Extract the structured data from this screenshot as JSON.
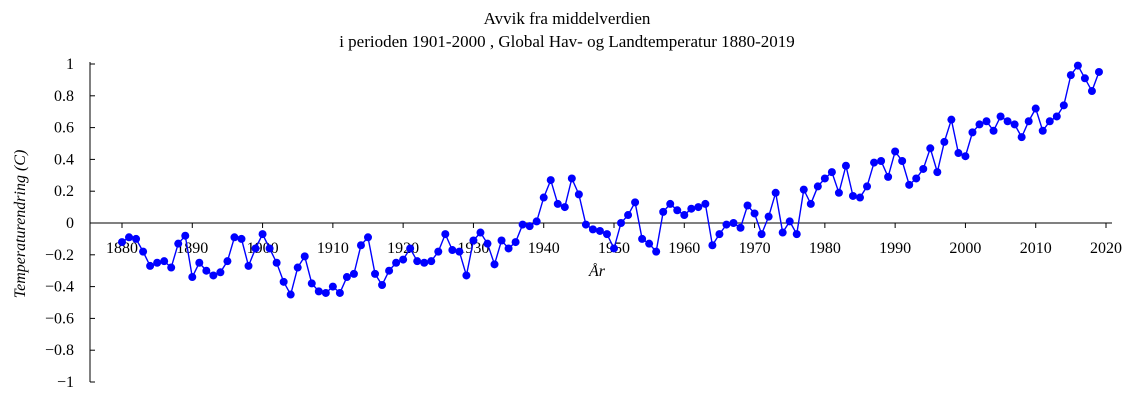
{
  "colors": {
    "series": "#0000ff",
    "axis": "#000000",
    "background": "#ffffff"
  },
  "chart_data": {
    "type": "line",
    "title_lines": [
      "Avvik fra middelverdien",
      "i perioden 1901-2000 , Global Hav- og Landtemperatur 1880-2019"
    ],
    "xlabel": "År",
    "ylabel": "Temperaturendring (C)",
    "xlim": [
      1880,
      2020
    ],
    "ylim": [
      -1,
      1
    ],
    "xticks": [
      1880,
      1890,
      1900,
      1910,
      1920,
      1930,
      1940,
      1950,
      1960,
      1970,
      1980,
      1990,
      2000,
      2010,
      2020
    ],
    "yticks": [
      -1,
      -0.8,
      -0.6,
      -0.4,
      -0.2,
      0,
      0.2,
      0.4,
      0.6,
      0.8,
      1
    ],
    "xtick_labels": [
      "1880",
      "1890",
      "1900",
      "1910",
      "1920",
      "1930",
      "1940",
      "1950",
      "1960",
      "1970",
      "1980",
      "1990",
      "2000",
      "2010",
      "2020"
    ],
    "ytick_labels": [
      "−1",
      "−0.8",
      "−0.6",
      "−0.4",
      "−0.2",
      "0",
      "0.2",
      "0.4",
      "0.6",
      "0.8",
      "1"
    ],
    "markers": true,
    "grid": false,
    "series": [
      {
        "x": [
          1880,
          1881,
          1882,
          1883,
          1884,
          1885,
          1886,
          1887,
          1888,
          1889,
          1890,
          1891,
          1892,
          1893,
          1894,
          1895,
          1896,
          1897,
          1898,
          1899,
          1900,
          1901,
          1902,
          1903,
          1904,
          1905,
          1906,
          1907,
          1908,
          1909,
          1910,
          1911,
          1912,
          1913,
          1914,
          1915,
          1916,
          1917,
          1918,
          1919,
          1920,
          1921,
          1922,
          1923,
          1924,
          1925,
          1926,
          1927,
          1928,
          1929,
          1930,
          1931,
          1932,
          1933,
          1934,
          1935,
          1936,
          1937,
          1938,
          1939,
          1940,
          1941,
          1942,
          1943,
          1944,
          1945,
          1946,
          1947,
          1948,
          1949,
          1950,
          1951,
          1952,
          1953,
          1954,
          1955,
          1956,
          1957,
          1958,
          1959,
          1960,
          1961,
          1962,
          1963,
          1964,
          1965,
          1966,
          1967,
          1968,
          1969,
          1970,
          1971,
          1972,
          1973,
          1974,
          1975,
          1976,
          1977,
          1978,
          1979,
          1980,
          1981,
          1982,
          1983,
          1984,
          1985,
          1986,
          1987,
          1988,
          1989,
          1990,
          1991,
          1992,
          1993,
          1994,
          1995,
          1996,
          1997,
          1998,
          1999,
          2000,
          2001,
          2002,
          2003,
          2004,
          2005,
          2006,
          2007,
          2008,
          2009,
          2010,
          2011,
          2012,
          2013,
          2014,
          2015,
          2016,
          2017,
          2018,
          2019
        ],
        "values": [
          -0.12,
          -0.09,
          -0.1,
          -0.18,
          -0.27,
          -0.25,
          -0.24,
          -0.28,
          -0.13,
          -0.08,
          -0.34,
          -0.25,
          -0.3,
          -0.33,
          -0.31,
          -0.24,
          -0.09,
          -0.1,
          -0.27,
          -0.16,
          -0.07,
          -0.16,
          -0.25,
          -0.37,
          -0.45,
          -0.28,
          -0.21,
          -0.38,
          -0.43,
          -0.44,
          -0.4,
          -0.44,
          -0.34,
          -0.32,
          -0.14,
          -0.09,
          -0.32,
          -0.39,
          -0.3,
          -0.25,
          -0.23,
          -0.16,
          -0.24,
          -0.25,
          -0.24,
          -0.18,
          -0.07,
          -0.17,
          -0.18,
          -0.33,
          -0.11,
          -0.06,
          -0.13,
          -0.26,
          -0.11,
          -0.16,
          -0.12,
          -0.01,
          -0.02,
          0.01,
          0.16,
          0.27,
          0.12,
          0.1,
          0.28,
          0.18,
          -0.01,
          -0.04,
          -0.05,
          -0.07,
          -0.16,
          0.0,
          0.05,
          0.13,
          -0.1,
          -0.13,
          -0.18,
          0.07,
          0.12,
          0.08,
          0.05,
          0.09,
          0.1,
          0.12,
          -0.14,
          -0.07,
          -0.01,
          0.0,
          -0.03,
          0.11,
          0.06,
          -0.07,
          0.04,
          0.19,
          -0.06,
          0.01,
          -0.07,
          0.21,
          0.12,
          0.23,
          0.28,
          0.32,
          0.19,
          0.36,
          0.17,
          0.16,
          0.23,
          0.38,
          0.39,
          0.29,
          0.45,
          0.39,
          0.24,
          0.28,
          0.34,
          0.47,
          0.32,
          0.51,
          0.65,
          0.44,
          0.42,
          0.57,
          0.62,
          0.64,
          0.58,
          0.67,
          0.64,
          0.62,
          0.54,
          0.64,
          0.72,
          0.58,
          0.64,
          0.67,
          0.74,
          0.93,
          0.99,
          0.91,
          0.83,
          0.95
        ]
      }
    ]
  }
}
